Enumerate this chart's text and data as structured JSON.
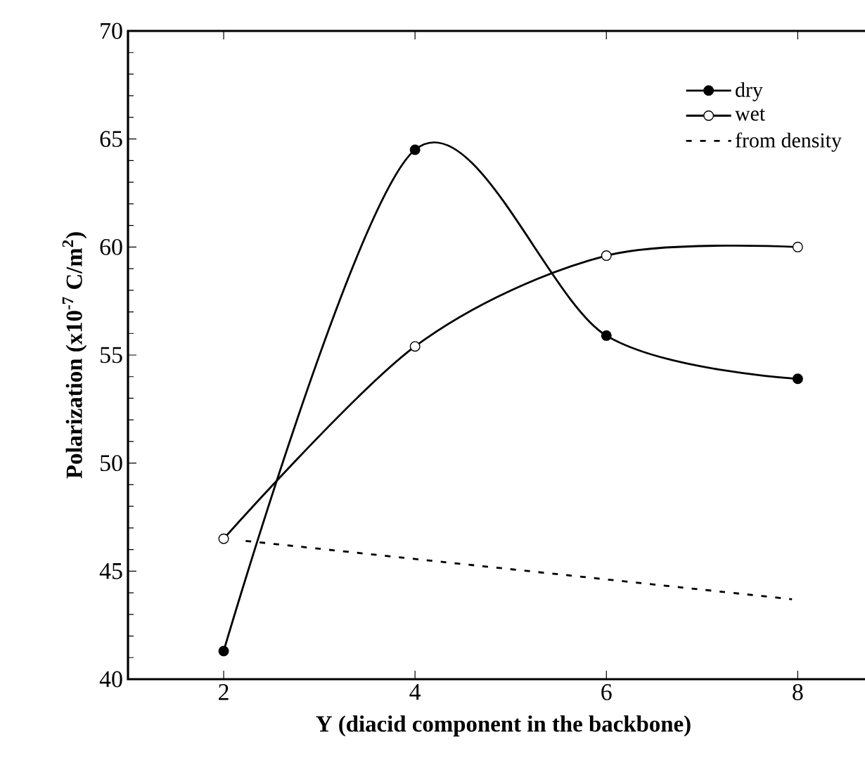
{
  "chart_data": {
    "type": "line",
    "xlabel": "Y (diacid component in the backbone)",
    "ylabel": "Polarization (x10$^{-7}$ C/m$^{2}$)",
    "xlim": [
      1,
      8.85
    ],
    "ylim": [
      40,
      70
    ],
    "xticks": [
      2,
      4,
      6,
      8
    ],
    "yticks": [
      40,
      45,
      50,
      55,
      60,
      65,
      70
    ],
    "grid": false,
    "legend": "top right",
    "series": [
      {
        "name": "dry",
        "color": "#000000",
        "x": [
          2,
          4,
          6,
          8
        ],
        "values": [
          41.3,
          64.5,
          55.9,
          53.9
        ],
        "marker": "circle",
        "line_style": "solid"
      },
      {
        "name": "wet",
        "color": "#000000",
        "x": [
          2,
          4,
          6,
          8
        ],
        "values": [
          46.5,
          55.4,
          59.6,
          60.0
        ],
        "marker": "circle",
        "line_style": "solid"
      },
      {
        "name": "from density",
        "color": "#000000",
        "x": [
          2.23,
          7.94
        ],
        "values": [
          46.4,
          43.7
        ],
        "marker": "none",
        "line_style": "dashed"
      }
    ]
  }
}
